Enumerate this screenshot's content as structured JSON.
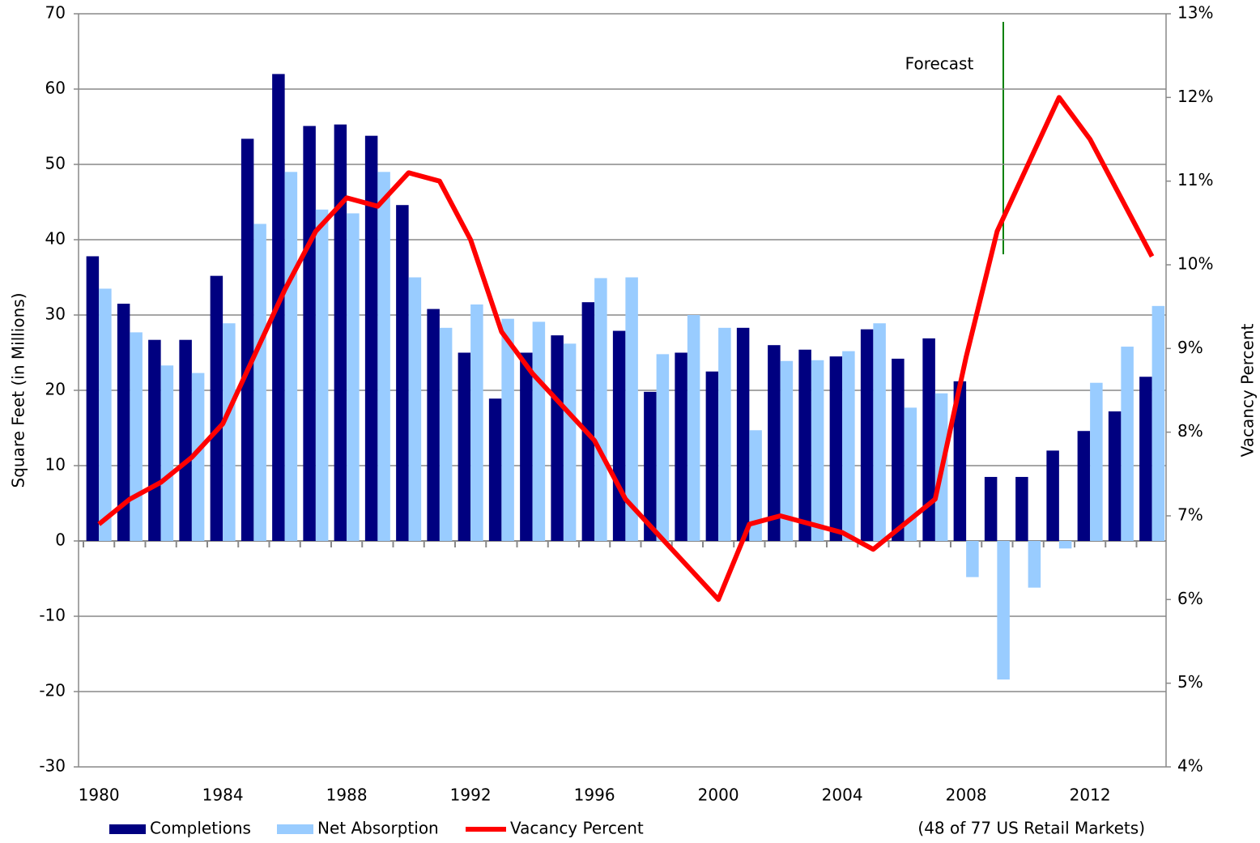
{
  "chart_data": {
    "type": "bar-line",
    "categories": [
      "1980",
      null,
      null,
      null,
      "1984",
      null,
      null,
      null,
      "1988",
      null,
      null,
      null,
      "1992",
      null,
      null,
      null,
      "1996",
      null,
      null,
      null,
      "2000",
      null,
      null,
      null,
      "2004",
      null,
      null,
      null,
      "2008",
      null,
      null,
      null,
      "2012",
      null,
      null
    ],
    "series": [
      {
        "name": "Completions",
        "color": "#000080",
        "type": "bar",
        "values": [
          37.8,
          31.5,
          26.7,
          26.7,
          35.2,
          53.4,
          62,
          55.1,
          55.3,
          53.8,
          44.6,
          30.8,
          25,
          18.9,
          25,
          27.3,
          31.7,
          27.9,
          19.8,
          25,
          22.5,
          28.3,
          26,
          25.4,
          24.5,
          28.1,
          24.2,
          26.9,
          21.2,
          8.5,
          8.5,
          12,
          14.6,
          17.2,
          21.8
        ]
      },
      {
        "name": "Net Absorption",
        "color": "#99ccff",
        "type": "bar",
        "values": [
          33.5,
          27.7,
          23.3,
          22.3,
          28.9,
          42.1,
          49,
          44,
          43.5,
          49,
          35,
          28.3,
          31.4,
          29.5,
          29.1,
          26.2,
          34.9,
          35,
          24.8,
          30,
          28.3,
          14.7,
          23.9,
          24,
          25.2,
          28.9,
          17.7,
          19.6,
          -4.8,
          -18.4,
          -6.2,
          -1,
          21,
          25.8,
          31.2
        ]
      },
      {
        "name": "Vacancy Percent",
        "color": "#ff0000",
        "type": "line",
        "axis": "y2",
        "values": [
          6.9,
          7.2,
          7.4,
          7.7,
          8.1,
          8.9,
          9.7,
          10.4,
          10.8,
          10.7,
          11.1,
          11.0,
          10.3,
          9.2,
          8.7,
          8.3,
          7.9,
          7.2,
          6.8,
          6.4,
          6.0,
          6.9,
          7.0,
          6.9,
          6.8,
          6.6,
          6.9,
          7.2,
          8.9,
          10.4,
          11.2,
          12.0,
          11.5,
          10.8,
          10.1
        ]
      }
    ],
    "ylabel": "Square Feet (in Millions)",
    "y2label": "Vacancy Percent",
    "ylim": [
      -30,
      70
    ],
    "yticks": [
      -30,
      -20,
      -10,
      0,
      10,
      20,
      30,
      40,
      50,
      60,
      70
    ],
    "y2lim": [
      4,
      13
    ],
    "y2ticks": [
      {
        "value": 4,
        "label": "4%"
      },
      {
        "value": 5,
        "label": "5%"
      },
      {
        "value": 6,
        "label": "6%"
      },
      {
        "value": 7,
        "label": "7%"
      },
      {
        "value": 8,
        "label": "8%"
      },
      {
        "value": 9,
        "label": "9%"
      },
      {
        "value": 10,
        "label": "10%"
      },
      {
        "value": 11,
        "label": "11%"
      },
      {
        "value": 12,
        "label": "12%"
      },
      {
        "value": 13,
        "label": "13%"
      }
    ],
    "annotation": "Forecast",
    "note": "(48 of 77 US Retail Markets)",
    "grid": true,
    "legend": "bottom"
  }
}
